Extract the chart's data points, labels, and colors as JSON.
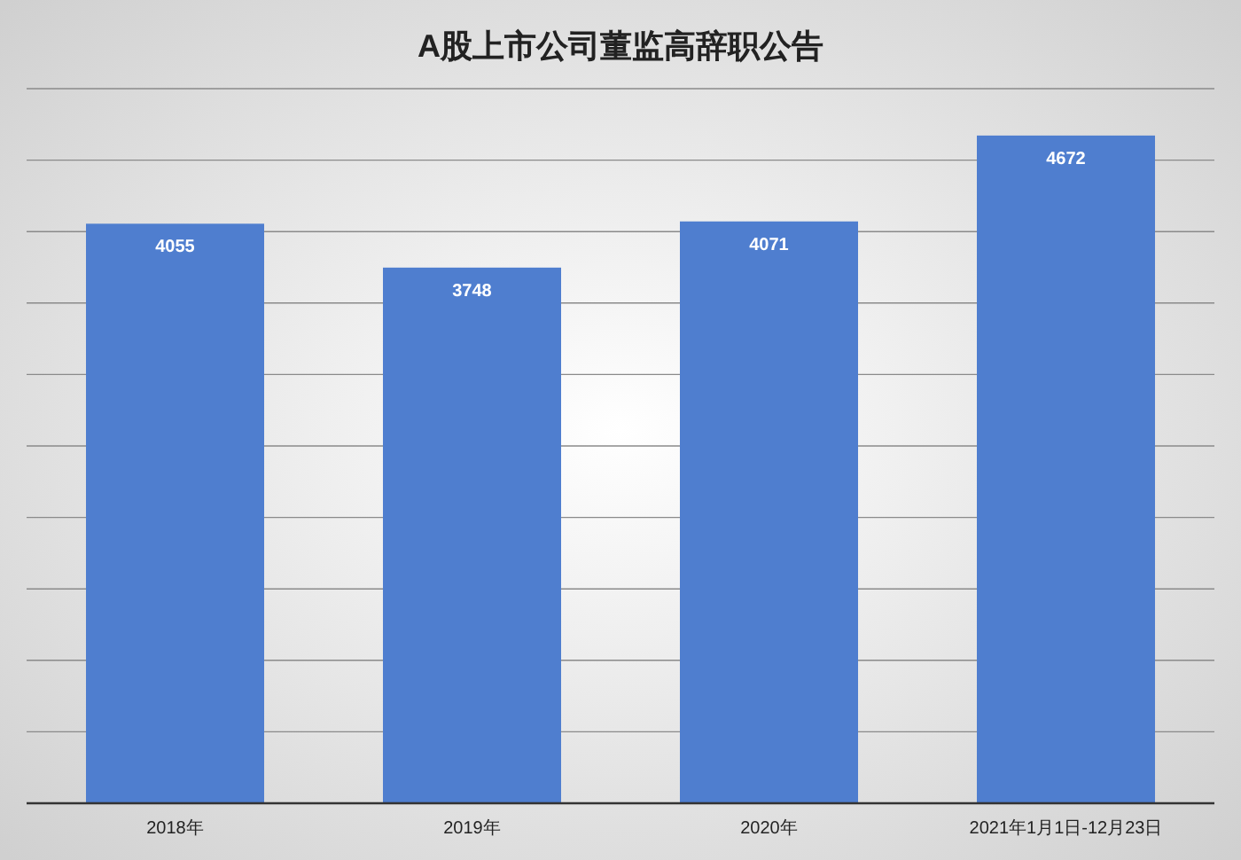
{
  "chart_data": {
    "type": "bar",
    "title": "A股上市公司董监高辞职公告",
    "categories": [
      "2018年",
      "2019年",
      "2020年",
      "2021年1月1日-12月23日"
    ],
    "values": [
      4055,
      3748,
      4071,
      4672
    ],
    "color": "#4f7ecf",
    "ylim": [
      0,
      5000
    ],
    "yticks": [
      {
        "value": 0,
        "label": null
      },
      {
        "value": 500,
        "label": null
      },
      {
        "value": 1000,
        "label": null
      },
      {
        "value": 1500,
        "label": null
      },
      {
        "value": 2000,
        "label": null
      },
      {
        "value": 2500,
        "label": null
      },
      {
        "value": 3000,
        "label": null
      },
      {
        "value": 3500,
        "label": null
      },
      {
        "value": 4000,
        "label": null
      },
      {
        "value": 4500,
        "label": null
      },
      {
        "value": 5000,
        "label": null
      }
    ],
    "tick_labels": "x",
    "grid": "y",
    "data_labels": true
  }
}
